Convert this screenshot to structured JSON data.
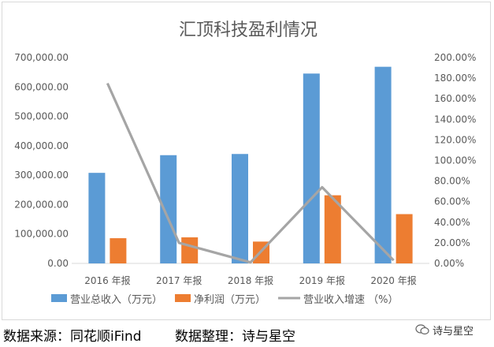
{
  "chart_data": {
    "type": "bar",
    "title": "汇顶科技盈利情况",
    "categories": [
      "2016 年报",
      "2017 年报",
      "2018 年报",
      "2019 年报",
      "2020 年报"
    ],
    "series": [
      {
        "name": "营业总收入（万元）",
        "type": "bar",
        "axis": "left",
        "color": "#5b9bd5",
        "values": [
          307950,
          368077,
          372128,
          645614,
          668699
        ]
      },
      {
        "name": "净利润（万元）",
        "type": "bar",
        "axis": "left",
        "color": "#ed7d31",
        "values": [
          85700,
          88700,
          74200,
          231700,
          167600
        ]
      },
      {
        "name": "营业收入增速 （%）",
        "type": "line",
        "axis": "right",
        "color": "#a5a5a5",
        "values": [
          175.0,
          20.0,
          1.0,
          74.0,
          3.0
        ]
      }
    ],
    "y_left": {
      "min": 0,
      "max": 700000,
      "step": 100000,
      "tick_labels": [
        "0.00",
        "100,000.00",
        "200,000.00",
        "300,000.00",
        "400,000.00",
        "500,000.00",
        "600,000.00",
        "700,000.00"
      ]
    },
    "y_right": {
      "min": 0,
      "max": 200,
      "step": 20,
      "tick_labels": [
        "0.00%",
        "20.00%",
        "40.00%",
        "60.00%",
        "80.00%",
        "100.00%",
        "120.00%",
        "140.00%",
        "160.00%",
        "180.00%",
        "200.00%"
      ]
    },
    "grid": false,
    "legend_position": "bottom"
  },
  "footer": {
    "source": "数据来源：同花顺iFind",
    "editor": "数据整理：诗与星空",
    "watermark": "诗与星空"
  }
}
